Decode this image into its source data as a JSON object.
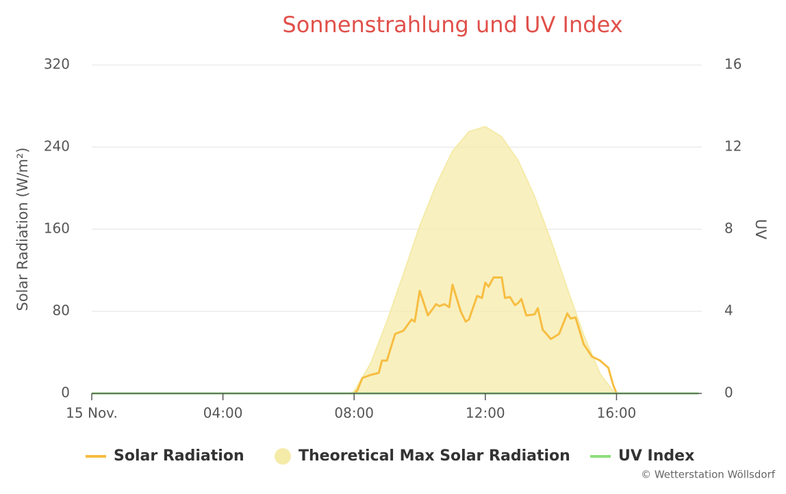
{
  "chart_data": {
    "type": "line",
    "title": "Sonnenstrahlung und UV Index",
    "y_label": "Solar Radiation (W/m²)",
    "y2_label": "UV",
    "credit": "© Wetterstation Wöllsdorf",
    "xlim": [
      0,
      18.6
    ],
    "xticks": [
      {
        "value": 0,
        "label": "15 Nov."
      },
      {
        "value": 4,
        "label": "04:00"
      },
      {
        "value": 8,
        "label": "08:00"
      },
      {
        "value": 12,
        "label": "12:00"
      },
      {
        "value": 16,
        "label": "16:00"
      }
    ],
    "ylim": [
      0,
      320
    ],
    "yticks": [
      0,
      80,
      160,
      240,
      320
    ],
    "y2lim": [
      0,
      16
    ],
    "y2ticks": [
      0,
      4,
      8,
      12,
      16
    ],
    "grid": true,
    "legend": "bottom",
    "series": [
      {
        "name": "Solar Radiation",
        "type": "line",
        "color": "#f7bd41",
        "x": [
          0,
          8.0,
          8.1,
          8.25,
          8.5,
          8.75,
          8.85,
          9.0,
          9.25,
          9.5,
          9.75,
          9.85,
          10.0,
          10.25,
          10.5,
          10.6,
          10.75,
          10.9,
          11.0,
          11.25,
          11.4,
          11.5,
          11.75,
          11.9,
          12.0,
          12.1,
          12.25,
          12.5,
          12.6,
          12.75,
          12.9,
          13.0,
          13.1,
          13.25,
          13.5,
          13.6,
          13.75,
          14.0,
          14.25,
          14.5,
          14.6,
          14.75,
          15.0,
          15.25,
          15.5,
          15.75,
          15.9,
          16.0,
          18.5
        ],
        "values": [
          0,
          0,
          3,
          15,
          18,
          20,
          32,
          32,
          58,
          61,
          72,
          70,
          100,
          76,
          87,
          85,
          87,
          84,
          106,
          80,
          70,
          72,
          95,
          93,
          108,
          104,
          113,
          113,
          93,
          94,
          86,
          88,
          92,
          76,
          77,
          83,
          62,
          53,
          58,
          78,
          73,
          74,
          48,
          36,
          32,
          25,
          8,
          0,
          0
        ]
      },
      {
        "name": "Theoretical Max Solar Radiation",
        "type": "area",
        "color": "#f5eba9",
        "x": [
          7.9,
          8.0,
          8.5,
          9.0,
          9.5,
          10.0,
          10.5,
          11.0,
          11.5,
          12.0,
          12.5,
          13.0,
          13.5,
          14.0,
          14.5,
          15.0,
          15.5,
          15.95
        ],
        "values": [
          0,
          2,
          29,
          70,
          116,
          163,
          203,
          236,
          255,
          260,
          250,
          227,
          192,
          149,
          102,
          57,
          19,
          0
        ]
      },
      {
        "name": "UV Index",
        "type": "line",
        "axis": "y2",
        "color": "#8ede7d",
        "x": [
          0,
          18.5
        ],
        "values": [
          0,
          0
        ]
      }
    ]
  }
}
